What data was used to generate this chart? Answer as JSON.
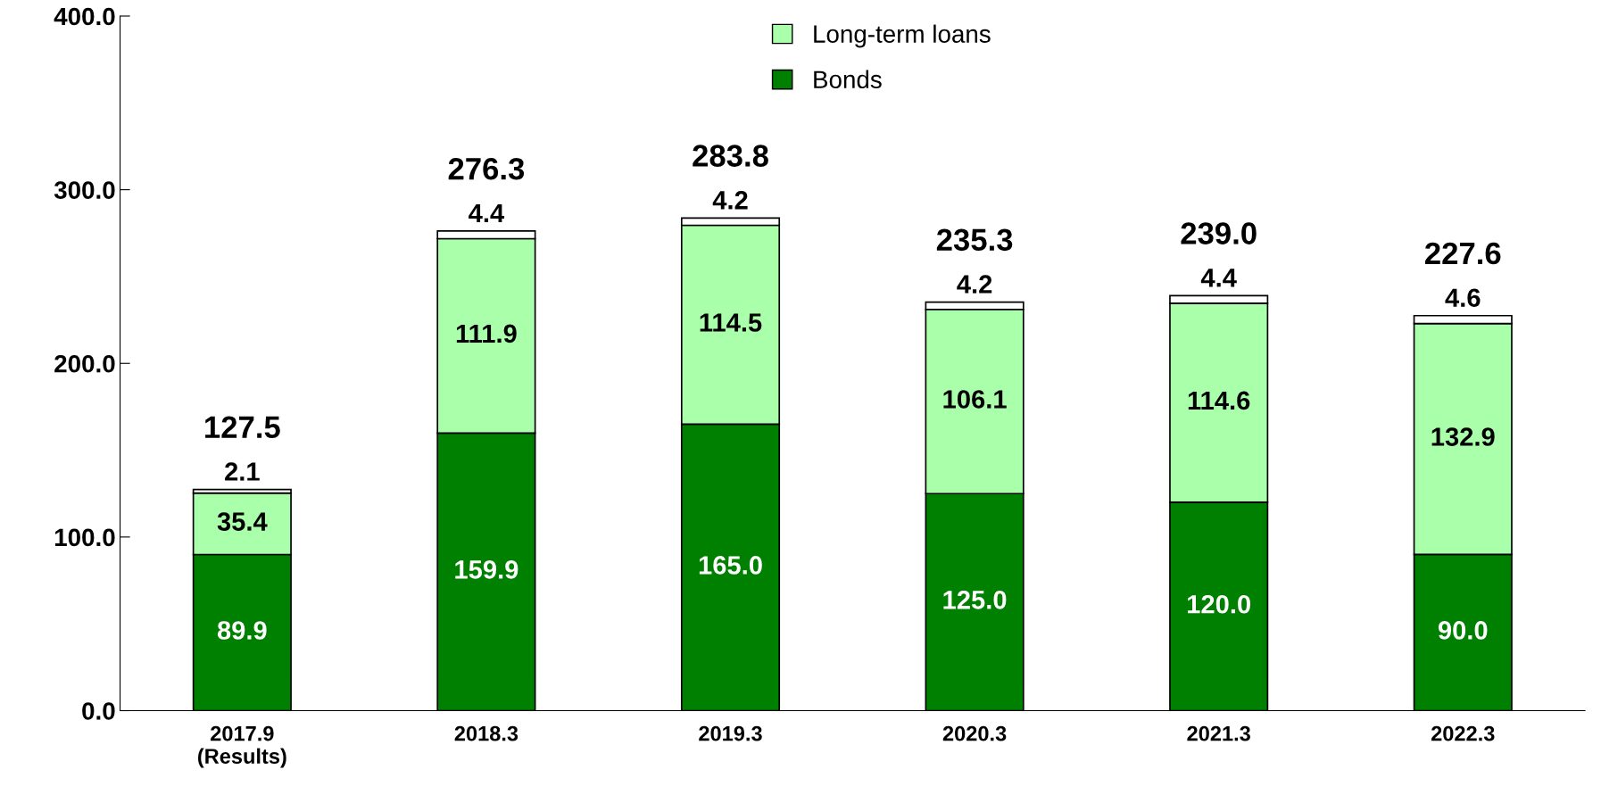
{
  "chart_data": {
    "type": "bar",
    "stacked": true,
    "categories": [
      "2017.9\n(Results)",
      "2018.3",
      "2019.3",
      "2020.3",
      "2021.3",
      "2022.3"
    ],
    "series": [
      {
        "name": "Bonds",
        "color": "#008000",
        "values": [
          89.9,
          159.9,
          165.0,
          125.0,
          120.0,
          90.0
        ],
        "value_labels": [
          "89.9",
          "159.9",
          "165.0",
          "125.0",
          "120.0",
          "90.0"
        ]
      },
      {
        "name": "Long-term loans",
        "color": "#aaffaa",
        "values": [
          35.4,
          111.9,
          114.5,
          106.1,
          114.6,
          132.9
        ],
        "value_labels": [
          "35.4",
          "111.9",
          "114.5",
          "106.1",
          "114.6",
          "132.9"
        ]
      },
      {
        "color": "#ffffff",
        "values": [
          2.1,
          4.4,
          4.2,
          4.2,
          4.4,
          4.6
        ],
        "value_labels": [
          "2.1",
          "4.4",
          "4.2",
          "4.2",
          "4.4",
          "4.6"
        ]
      }
    ],
    "totals": [
      "127.5",
      "276.3",
      "283.8",
      "235.3",
      "239.0",
      "227.6"
    ],
    "grid": false,
    "legend": "top",
    "ylim": [
      0,
      400
    ],
    "yticks": [
      {
        "value": 0,
        "label": "0.0"
      },
      {
        "value": 100,
        "label": "100.0"
      },
      {
        "value": 200,
        "label": "200.0"
      },
      {
        "value": 300,
        "label": "300.0"
      },
      {
        "value": 400,
        "label": "400.0"
      }
    ]
  }
}
